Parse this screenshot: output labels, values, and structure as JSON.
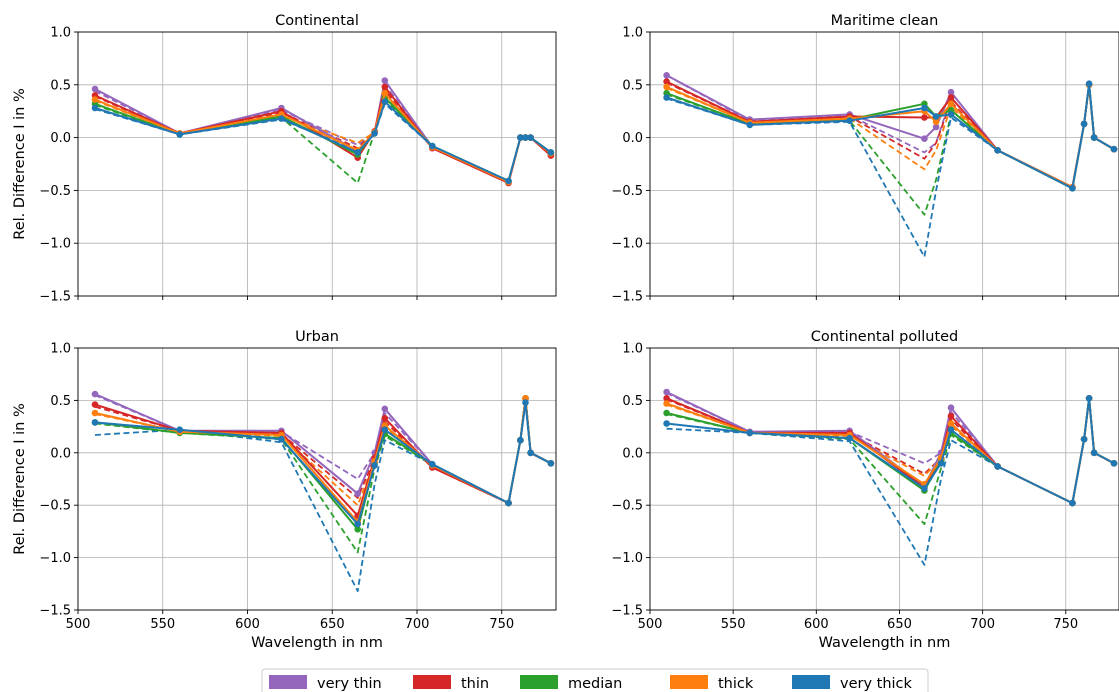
{
  "chart_data": {
    "type": "line",
    "x_label": "Wavelength in nm",
    "y_label": "Rel. Difference I in %",
    "xlim": [
      500,
      782
    ],
    "ylim": [
      -1.5,
      1.0
    ],
    "x_ticks": [
      500,
      550,
      600,
      650,
      700,
      750
    ],
    "y_ticks": [
      1.0,
      0.5,
      0.0,
      -0.5,
      -1.0,
      -1.5
    ],
    "x_tick_labels": [
      "500",
      "550",
      "600",
      "650",
      "700",
      "750"
    ],
    "y_tick_labels": [
      "1.0",
      "0.5",
      "0.0",
      "−0.5",
      "−1.0",
      "−1.5"
    ],
    "grid": true,
    "legend_position": "bottom-center",
    "legend": [
      {
        "name": "very thin",
        "color": "#9467bd"
      },
      {
        "name": "thin",
        "color": "#d62728"
      },
      {
        "name": "median",
        "color": "#2ca02c"
      },
      {
        "name": "thick",
        "color": "#ff7f0e"
      },
      {
        "name": "very thick",
        "color": "#1f77b4"
      }
    ],
    "x": [
      510,
      560,
      620,
      665,
      675,
      681,
      709,
      754,
      761,
      764,
      767,
      779
    ],
    "panels": [
      {
        "title": "Continental",
        "solid_x": [
          510,
          560,
          620,
          665,
          675,
          681,
          709,
          754,
          761,
          764,
          767,
          779
        ],
        "dashed_x": [
          510,
          560,
          620,
          665,
          675,
          681,
          709,
          754,
          761,
          764,
          767,
          779
        ],
        "series": [
          {
            "name": "very thin",
            "solid": [
              0.46,
              0.04,
              0.28,
              -0.13,
              0.05,
              0.54,
              -0.09,
              -0.42,
              0.0,
              0.0,
              0.0,
              -0.16
            ],
            "dashed": [
              0.44,
              0.04,
              0.26,
              -0.07,
              0.05,
              0.5,
              -0.09,
              -0.42,
              0.0,
              0.0,
              0.0,
              -0.16
            ]
          },
          {
            "name": "thin",
            "solid": [
              0.4,
              0.04,
              0.25,
              -0.19,
              0.06,
              0.48,
              -0.1,
              -0.43,
              0.0,
              0.0,
              0.0,
              -0.17
            ],
            "dashed": [
              0.39,
              0.04,
              0.24,
              -0.1,
              0.06,
              0.45,
              -0.1,
              -0.43,
              0.0,
              0.0,
              0.0,
              -0.17
            ]
          },
          {
            "name": "median",
            "solid": [
              0.32,
              0.03,
              0.2,
              -0.16,
              0.05,
              0.38,
              -0.08,
              -0.41,
              0.0,
              0.0,
              0.0,
              -0.14
            ],
            "dashed": [
              0.31,
              0.03,
              0.19,
              -0.43,
              0.05,
              0.36,
              -0.08,
              -0.41,
              0.0,
              0.0,
              0.0,
              -0.14
            ]
          },
          {
            "name": "thick",
            "solid": [
              0.36,
              0.04,
              0.22,
              -0.12,
              0.05,
              0.42,
              -0.09,
              -0.42,
              0.0,
              0.0,
              0.0,
              -0.15
            ],
            "dashed": [
              0.35,
              0.04,
              0.21,
              -0.05,
              0.05,
              0.4,
              -0.09,
              -0.42,
              0.0,
              0.0,
              0.0,
              -0.15
            ]
          },
          {
            "name": "very thick",
            "solid": [
              0.28,
              0.03,
              0.18,
              -0.14,
              0.04,
              0.34,
              -0.08,
              -0.41,
              0.0,
              0.0,
              0.0,
              -0.14
            ],
            "dashed": [
              0.27,
              0.03,
              0.17,
              -0.12,
              0.04,
              0.32,
              -0.08,
              -0.41,
              0.0,
              0.0,
              0.0,
              -0.14
            ]
          }
        ]
      },
      {
        "title": "Maritime clean",
        "solid_x": [
          510,
          560,
          620,
          665,
          672,
          681,
          709,
          754,
          761,
          764,
          767,
          779
        ],
        "dashed_x": [
          510,
          560,
          620,
          665,
          672,
          681,
          709,
          754,
          761,
          764,
          767,
          779
        ],
        "series": [
          {
            "name": "very thin",
            "solid": [
              0.59,
              0.17,
              0.22,
              -0.01,
              0.1,
              0.43,
              -0.12,
              -0.47,
              0.13,
              0.5,
              0.0,
              -0.11
            ],
            "dashed": [
              0.59,
              0.16,
              0.21,
              -0.14,
              -0.05,
              0.38,
              -0.12,
              -0.47,
              0.13,
              0.5,
              0.0,
              -0.11
            ]
          },
          {
            "name": "thin",
            "solid": [
              0.53,
              0.15,
              0.2,
              0.19,
              0.19,
              0.38,
              -0.12,
              -0.47,
              0.13,
              0.5,
              0.0,
              -0.11
            ],
            "dashed": [
              0.52,
              0.15,
              0.2,
              -0.2,
              -0.05,
              0.34,
              -0.12,
              -0.47,
              0.13,
              0.5,
              0.0,
              -0.11
            ]
          },
          {
            "name": "median",
            "solid": [
              0.42,
              0.13,
              0.17,
              0.32,
              0.2,
              0.26,
              -0.12,
              -0.48,
              0.13,
              0.5,
              0.0,
              -0.11
            ],
            "dashed": [
              0.41,
              0.13,
              0.16,
              -0.73,
              -0.4,
              0.22,
              -0.12,
              -0.48,
              0.13,
              0.5,
              0.0,
              -0.11
            ]
          },
          {
            "name": "thick",
            "solid": [
              0.48,
              0.14,
              0.18,
              0.25,
              0.15,
              0.32,
              -0.12,
              -0.47,
              0.13,
              0.5,
              0.0,
              -0.11
            ],
            "dashed": [
              0.47,
              0.14,
              0.18,
              -0.3,
              -0.12,
              0.29,
              -0.12,
              -0.47,
              0.13,
              0.5,
              0.0,
              -0.11
            ]
          },
          {
            "name": "very thick",
            "solid": [
              0.38,
              0.12,
              0.16,
              0.28,
              0.2,
              0.22,
              -0.12,
              -0.48,
              0.13,
              0.51,
              0.0,
              -0.11
            ],
            "dashed": [
              0.37,
              0.12,
              0.15,
              -1.13,
              -0.5,
              0.19,
              -0.12,
              -0.48,
              0.13,
              0.51,
              0.0,
              -0.11
            ]
          }
        ]
      },
      {
        "title": "Urban",
        "solid_x": [
          510,
          560,
          620,
          665,
          675,
          681,
          709,
          754,
          761,
          764,
          767,
          779
        ],
        "dashed_x": [
          510,
          560,
          620,
          665,
          675,
          681,
          709,
          754,
          761,
          764,
          767,
          779
        ],
        "series": [
          {
            "name": "very thin",
            "solid": [
              0.56,
              0.21,
              0.21,
              -0.39,
              0.0,
              0.42,
              -0.11,
              -0.48,
              0.12,
              0.52,
              0.0,
              -0.1
            ],
            "dashed": [
              0.55,
              0.21,
              0.2,
              -0.25,
              0.0,
              0.38,
              -0.11,
              -0.48,
              0.12,
              0.52,
              0.0,
              -0.1
            ]
          },
          {
            "name": "thin",
            "solid": [
              0.46,
              0.21,
              0.19,
              -0.6,
              -0.05,
              0.33,
              -0.14,
              -0.48,
              0.12,
              0.52,
              0.0,
              -0.1
            ],
            "dashed": [
              0.44,
              0.21,
              0.18,
              -0.43,
              -0.05,
              0.3,
              -0.14,
              -0.48,
              0.12,
              0.52,
              0.0,
              -0.1
            ]
          },
          {
            "name": "median",
            "solid": [
              0.29,
              0.19,
              0.14,
              -0.73,
              -0.1,
              0.18,
              -0.11,
              -0.48,
              0.12,
              0.52,
              0.0,
              -0.1
            ],
            "dashed": [
              0.28,
              0.19,
              0.13,
              -0.95,
              -0.15,
              0.16,
              -0.11,
              -0.48,
              0.12,
              0.52,
              0.0,
              -0.1
            ]
          },
          {
            "name": "thick",
            "solid": [
              0.38,
              0.2,
              0.17,
              -0.66,
              -0.08,
              0.26,
              -0.12,
              -0.48,
              0.12,
              0.52,
              0.0,
              -0.1
            ],
            "dashed": [
              0.37,
              0.2,
              0.16,
              -0.5,
              -0.08,
              0.24,
              -0.12,
              -0.48,
              0.12,
              0.52,
              0.0,
              -0.1
            ]
          },
          {
            "name": "very thick",
            "solid": [
              0.29,
              0.22,
              0.13,
              -0.68,
              -0.12,
              0.22,
              -0.11,
              -0.48,
              0.12,
              0.48,
              0.0,
              -0.1
            ],
            "dashed": [
              0.17,
              0.22,
              0.1,
              -1.32,
              -0.3,
              0.12,
              -0.11,
              -0.48,
              0.12,
              0.48,
              0.0,
              -0.1
            ]
          }
        ]
      },
      {
        "title": "Continental polluted",
        "solid_x": [
          510,
          560,
          620,
          665,
          675,
          681,
          709,
          754,
          761,
          764,
          767,
          779
        ],
        "dashed_x": [
          510,
          560,
          620,
          665,
          675,
          681,
          709,
          754,
          761,
          764,
          767,
          779
        ],
        "series": [
          {
            "name": "very thin",
            "solid": [
              0.58,
              0.2,
              0.21,
              -0.32,
              0.0,
              0.43,
              -0.13,
              -0.48,
              0.13,
              0.52,
              0.0,
              -0.1
            ],
            "dashed": [
              0.57,
              0.2,
              0.2,
              -0.1,
              0.0,
              0.39,
              -0.13,
              -0.48,
              0.13,
              0.52,
              0.0,
              -0.1
            ]
          },
          {
            "name": "thin",
            "solid": [
              0.52,
              0.19,
              0.19,
              -0.33,
              -0.05,
              0.35,
              -0.13,
              -0.48,
              0.13,
              0.52,
              0.0,
              -0.1
            ],
            "dashed": [
              0.51,
              0.19,
              0.18,
              -0.2,
              -0.05,
              0.32,
              -0.13,
              -0.48,
              0.13,
              0.52,
              0.0,
              -0.1
            ]
          },
          {
            "name": "median",
            "solid": [
              0.38,
              0.19,
              0.14,
              -0.36,
              -0.08,
              0.19,
              -0.13,
              -0.48,
              0.13,
              0.52,
              0.0,
              -0.1
            ],
            "dashed": [
              0.37,
              0.19,
              0.13,
              -0.68,
              -0.15,
              0.17,
              -0.13,
              -0.48,
              0.13,
              0.52,
              0.0,
              -0.1
            ]
          },
          {
            "name": "thick",
            "solid": [
              0.47,
              0.19,
              0.17,
              -0.3,
              -0.05,
              0.28,
              -0.13,
              -0.48,
              0.13,
              0.52,
              0.0,
              -0.1
            ],
            "dashed": [
              0.46,
              0.19,
              0.16,
              -0.22,
              -0.05,
              0.26,
              -0.13,
              -0.48,
              0.13,
              0.52,
              0.0,
              -0.1
            ]
          },
          {
            "name": "very thick",
            "solid": [
              0.28,
              0.19,
              0.14,
              -0.34,
              -0.1,
              0.22,
              -0.13,
              -0.48,
              0.13,
              0.52,
              0.0,
              -0.1
            ],
            "dashed": [
              0.23,
              0.19,
              0.11,
              -1.07,
              -0.25,
              0.12,
              -0.13,
              -0.48,
              0.13,
              0.52,
              0.0,
              -0.1
            ]
          }
        ]
      }
    ]
  }
}
